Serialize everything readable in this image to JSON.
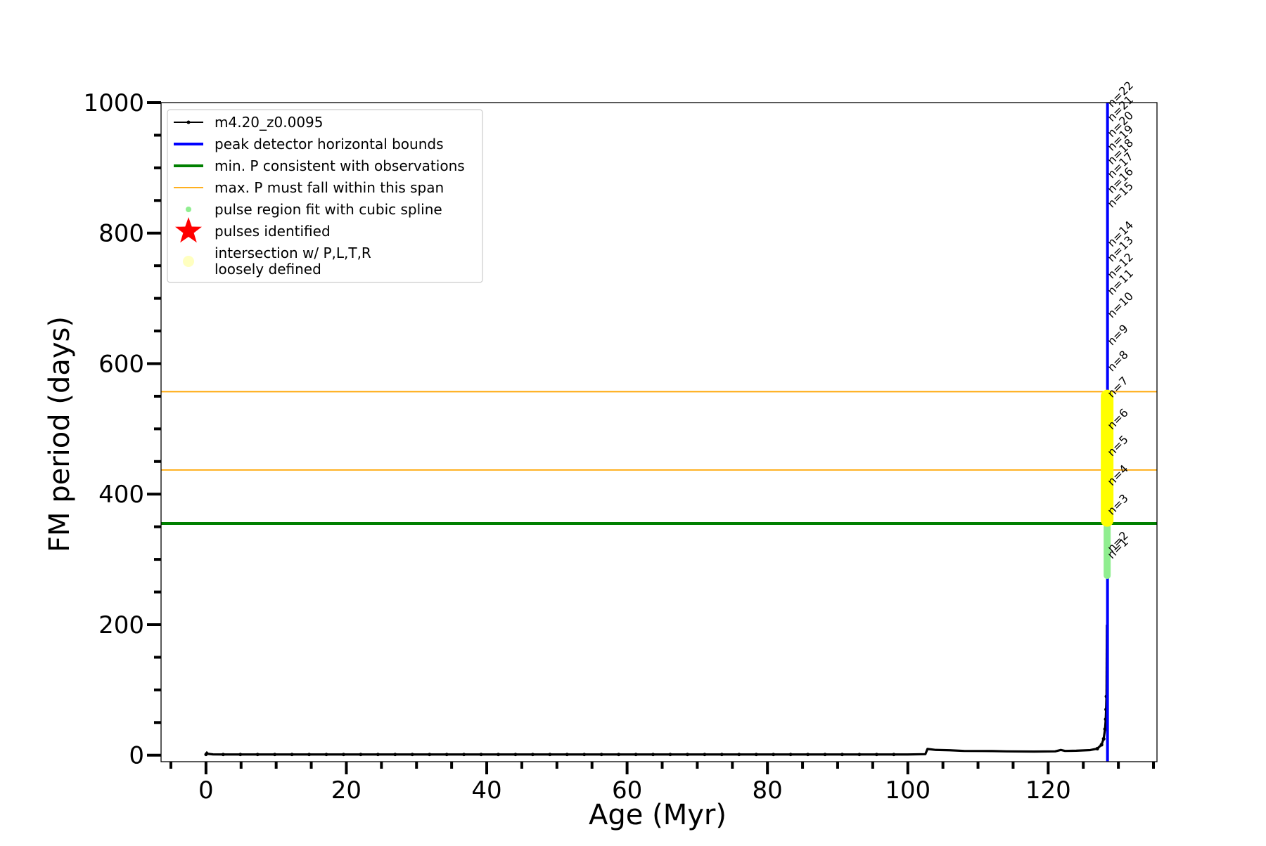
{
  "chart_data": {
    "type": "line",
    "title": "",
    "xlabel": "Age (Myr)",
    "ylabel": "FM period (days)",
    "xlim": [
      -6.4,
      135.5
    ],
    "ylim": [
      -10,
      1000
    ],
    "x_ticks": [
      0,
      20,
      40,
      60,
      80,
      100,
      120
    ],
    "y_ticks": [
      0,
      200,
      400,
      600,
      800,
      1000
    ],
    "x_minor_step": 5,
    "y_minor_step": 50,
    "legend": {
      "placement": "top-left",
      "entries": [
        {
          "label": "m4.20_z0.0095",
          "kind": "line-marker",
          "color": "#000000"
        },
        {
          "label": "peak detector horizontal bounds",
          "kind": "line",
          "color": "#0000ff"
        },
        {
          "label": "min. P consistent with observations",
          "kind": "line",
          "color": "#008000"
        },
        {
          "label": "max. P must fall within this span",
          "kind": "thin-line",
          "color": "#ffa500"
        },
        {
          "label": "pulse region fit with cubic spline",
          "kind": "dot",
          "color": "#90ee90"
        },
        {
          "label": "pulses identified",
          "kind": "star",
          "color": "#ff0000"
        },
        {
          "label": "intersection w/ P,L,T,R",
          "label2": "loosely defined",
          "kind": "dot",
          "color": "#ffffc0"
        }
      ]
    },
    "series": [
      {
        "name": "m4.20_z0.0095",
        "color": "#000000",
        "points": [
          [
            0.0,
            5.0
          ],
          [
            0.3,
            2.0
          ],
          [
            1.0,
            1.2
          ],
          [
            3,
            1.0
          ],
          [
            10,
            1.0
          ],
          [
            20,
            1.0
          ],
          [
            40,
            1.0
          ],
          [
            60,
            1.0
          ],
          [
            80,
            1.0
          ],
          [
            95,
            1.0
          ],
          [
            100,
            1.0
          ],
          [
            102.5,
            1.5
          ],
          [
            102.8,
            9.5
          ],
          [
            104,
            8.0
          ],
          [
            106,
            7.5
          ],
          [
            108,
            6.5
          ],
          [
            112,
            6.3
          ],
          [
            114,
            5.8
          ],
          [
            118,
            5.5
          ],
          [
            121,
            5.8
          ],
          [
            121.8,
            8.0
          ],
          [
            122.4,
            6.5
          ],
          [
            124,
            6.8
          ],
          [
            126,
            7.8
          ],
          [
            127.0,
            10.0
          ],
          [
            127.6,
            16.0
          ],
          [
            127.9,
            25.0
          ],
          [
            128.1,
            40.0
          ],
          [
            128.2,
            55.0
          ],
          [
            128.25,
            70.0
          ],
          [
            128.3,
            90.0
          ]
        ],
        "sparse_marker_step": 2.45
      }
    ],
    "peak_detector_bound_x": [
      128.4,
      128.5
    ],
    "peak_detector_color": "#0000ff",
    "min_period_observations": 355,
    "min_period_color": "#008000",
    "max_period_span": [
      437,
      557
    ],
    "max_period_color": "#ffa500",
    "spline_region": {
      "x": 128.4,
      "y_range": [
        270,
        355
      ],
      "color": "#90ee90"
    },
    "intersection_region": {
      "x": 128.4,
      "y_range": [
        350,
        560
      ],
      "color": "#ffff00"
    },
    "pulse_labels": [
      {
        "label": "n=1",
        "period": 300
      },
      {
        "label": "n=2",
        "period": 310
      },
      {
        "label": "n=3",
        "period": 367
      },
      {
        "label": "n=4",
        "period": 412
      },
      {
        "label": "n=5",
        "period": 457
      },
      {
        "label": "n=6",
        "period": 498
      },
      {
        "label": "n=7",
        "period": 547
      },
      {
        "label": "n=8",
        "period": 587
      },
      {
        "label": "n=9",
        "period": 627
      },
      {
        "label": "n=10",
        "period": 669
      },
      {
        "label": "n=11",
        "period": 704
      },
      {
        "label": "n=12",
        "period": 729
      },
      {
        "label": "n=13",
        "period": 755
      },
      {
        "label": "n=14",
        "period": 778
      },
      {
        "label": "n=15",
        "period": 838
      },
      {
        "label": "n=16",
        "period": 860
      },
      {
        "label": "n=17",
        "period": 883
      },
      {
        "label": "n=18",
        "period": 904
      },
      {
        "label": "n=19",
        "period": 925
      },
      {
        "label": "n=20",
        "period": 946
      },
      {
        "label": "n=21",
        "period": 970
      },
      {
        "label": "n=22",
        "period": 992
      }
    ]
  }
}
